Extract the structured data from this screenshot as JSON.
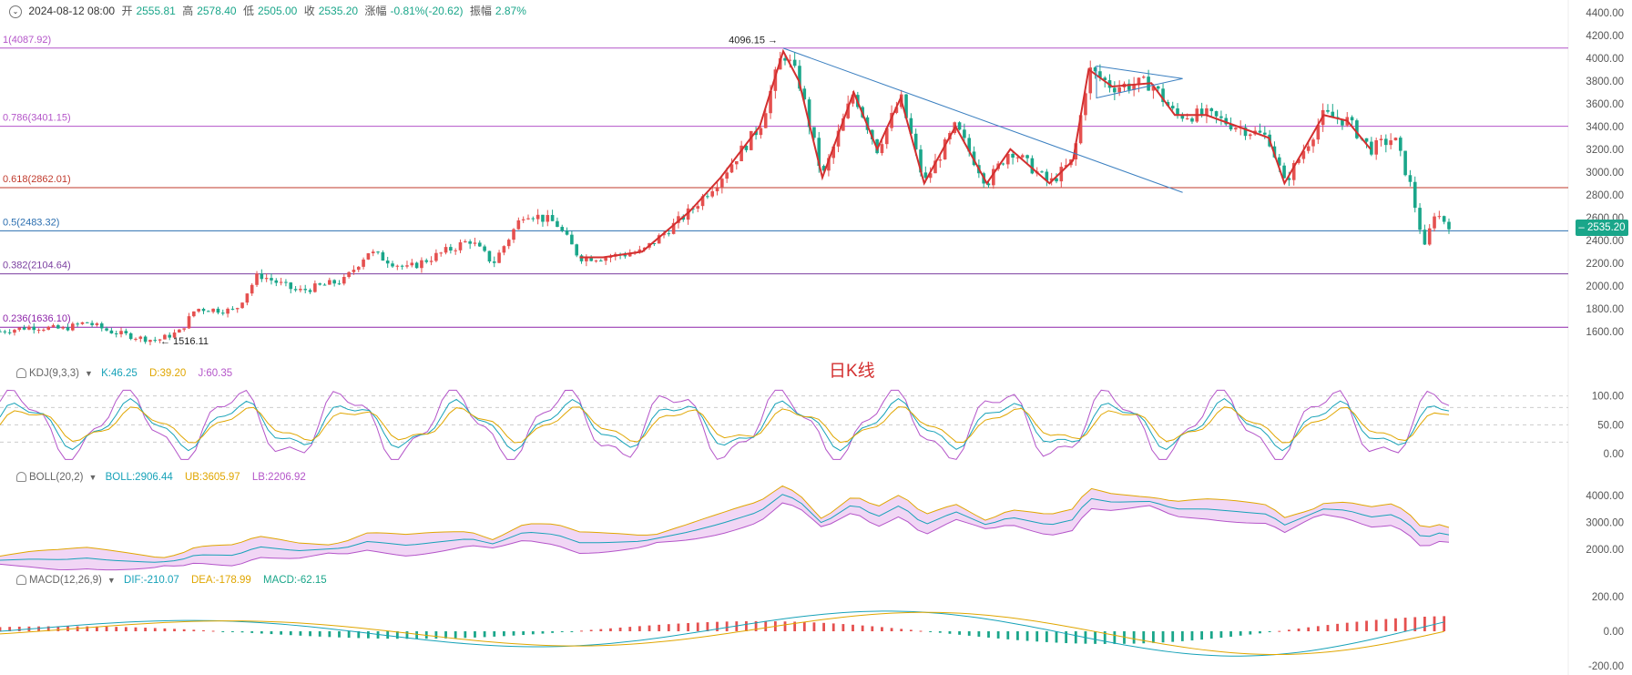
{
  "header": {
    "date": "2024-08-12 08:00",
    "open_label": "开",
    "open": "2555.81",
    "high_label": "高",
    "high": "2578.40",
    "low_label": "低",
    "low": "2505.00",
    "close_label": "收",
    "close": "2535.20",
    "change_label": "涨幅",
    "change": "-0.81%(-20.62)",
    "amp_label": "振幅",
    "amp": "2.87%"
  },
  "chart_data": {
    "type": "candlestick",
    "title": "日K线",
    "last_price": "2535.20",
    "y_ticks_price": [
      "4400.00",
      "4200.00",
      "4000.00",
      "3800.00",
      "3600.00",
      "3400.00",
      "3200.00",
      "3000.00",
      "2800.00",
      "2600.00",
      "2400.00",
      "2200.00",
      "2000.00",
      "1800.00",
      "1600.00"
    ],
    "ylim_price": [
      1550,
      4430
    ],
    "fib_levels": [
      {
        "label": "1(4087.92)",
        "value": 4087.92,
        "color": "#b455c9"
      },
      {
        "label": "0.786(3401.15)",
        "value": 3401.15,
        "color": "#b455c9"
      },
      {
        "label": "0.618(2862.01)",
        "value": 2862.01,
        "color": "#c0392b"
      },
      {
        "label": "0.5(2483.32)",
        "value": 2483.32,
        "color": "#2c6fb0"
      },
      {
        "label": "0.382(2104.64)",
        "value": 2104.64,
        "color": "#7b3fa0"
      },
      {
        "label": "0.236(1636.10)",
        "value": 1636.1,
        "color": "#8e24aa"
      }
    ],
    "annotations": [
      {
        "text": "4096.15",
        "x": 0.5,
        "y": 4096.15
      },
      {
        "text": "1516.11",
        "x": 0.1,
        "y": 1516.11
      }
    ],
    "price_path": [
      [
        0,
        1600
      ],
      [
        0.02,
        1640
      ],
      [
        0.04,
        1620
      ],
      [
        0.055,
        1680
      ],
      [
        0.07,
        1600
      ],
      [
        0.09,
        1540
      ],
      [
        0.1,
        1520
      ],
      [
        0.115,
        1600
      ],
      [
        0.125,
        1800
      ],
      [
        0.15,
        1780
      ],
      [
        0.165,
        2100
      ],
      [
        0.19,
        1950
      ],
      [
        0.22,
        2050
      ],
      [
        0.235,
        2300
      ],
      [
        0.26,
        2150
      ],
      [
        0.3,
        2400
      ],
      [
        0.315,
        2200
      ],
      [
        0.335,
        2650
      ],
      [
        0.355,
        2550
      ],
      [
        0.37,
        2250
      ],
      [
        0.385,
        2250
      ],
      [
        0.41,
        2300
      ],
      [
        0.44,
        2650
      ],
      [
        0.46,
        2950
      ],
      [
        0.485,
        3400
      ],
      [
        0.5,
        4060
      ],
      [
        0.51,
        3800
      ],
      [
        0.525,
        2950
      ],
      [
        0.545,
        3700
      ],
      [
        0.56,
        3200
      ],
      [
        0.575,
        3650
      ],
      [
        0.59,
        2900
      ],
      [
        0.61,
        3400
      ],
      [
        0.63,
        2900
      ],
      [
        0.645,
        3200
      ],
      [
        0.67,
        2900
      ],
      [
        0.685,
        3100
      ],
      [
        0.695,
        3900
      ],
      [
        0.71,
        3750
      ],
      [
        0.735,
        3780
      ],
      [
        0.75,
        3500
      ],
      [
        0.77,
        3500
      ],
      [
        0.79,
        3400
      ],
      [
        0.81,
        3300
      ],
      [
        0.82,
        2900
      ],
      [
        0.845,
        3500
      ],
      [
        0.86,
        3450
      ],
      [
        0.875,
        3200
      ],
      [
        0.89,
        3300
      ],
      [
        0.9,
        2900
      ],
      [
        0.91,
        2300
      ],
      [
        0.915,
        2650
      ],
      [
        0.925,
        2540
      ]
    ],
    "kdj": {
      "K": "46.25",
      "D": "39.20",
      "J": "60.35",
      "y_ticks": [
        "100.00",
        "50.00",
        "0.00"
      ]
    },
    "boll": {
      "BOLL": "2906.44",
      "UB": "3605.97",
      "LB": "2206.92",
      "y_ticks": [
        "4000.00",
        "3000.00",
        "2000.00"
      ]
    },
    "macd": {
      "DIF": "-210.07",
      "DEA": "-178.99",
      "MACD": "-62.15",
      "y_ticks": [
        "200.00",
        "0.00",
        "-200.00"
      ]
    }
  },
  "panels": {
    "kdj_name": "KDJ(9,3,3)",
    "kdj_k": "K:46.25",
    "kdj_d": "D:39.20",
    "kdj_j": "J:60.35",
    "boll_name": "BOLL(20,2)",
    "boll_mid": "BOLL:2906.44",
    "boll_ub": "UB:3605.97",
    "boll_lb": "LB:2206.92",
    "macd_name": "MACD(12,26,9)",
    "macd_dif": "DIF:-210.07",
    "macd_dea": "DEA:-178.99",
    "macd_val": "MACD:-62.15"
  },
  "colors": {
    "up": "#e5504f",
    "down": "#1aa68a",
    "accent": "#1aa68a"
  }
}
